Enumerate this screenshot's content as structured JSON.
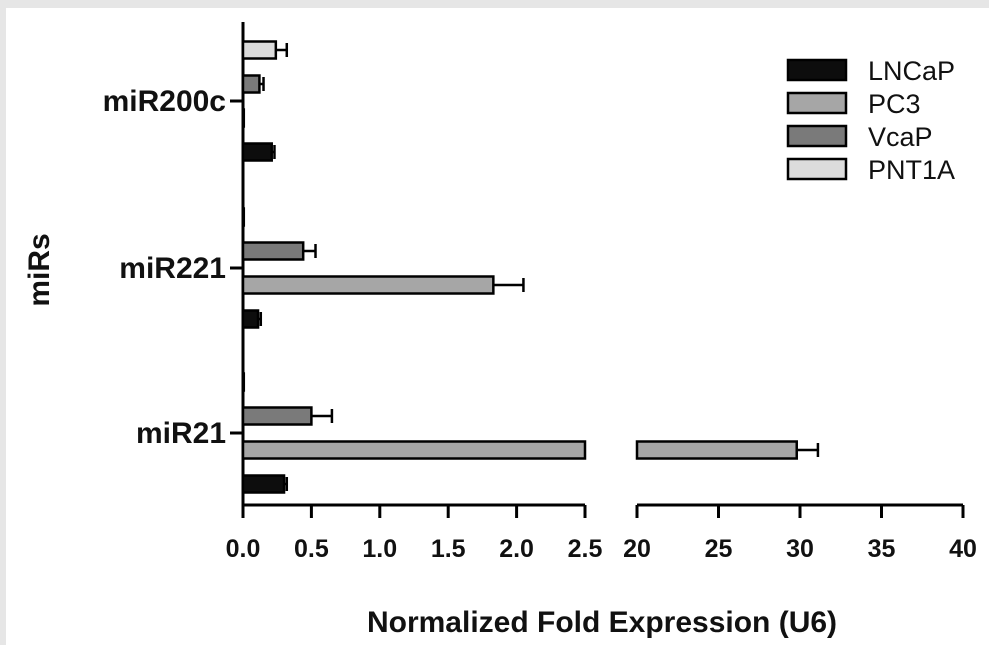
{
  "chart_data": {
    "type": "bar",
    "orientation": "horizontal",
    "xlabel": "Normalized Fold Expression (U6)",
    "ylabel": "miRs",
    "categories": [
      "miR200c",
      "miR221",
      "miR21"
    ],
    "series": [
      {
        "name": "LNCaP",
        "color": "#0d0d0d",
        "values": [
          0.21,
          0.11,
          0.3
        ],
        "errors": [
          0.02,
          0.02,
          0.02
        ]
      },
      {
        "name": "PC3",
        "color": "#a6a6a6",
        "values": [
          0.003,
          1.83,
          29.8
        ],
        "errors": [
          0.003,
          0.22,
          1.3
        ]
      },
      {
        "name": "VcaP",
        "color": "#7a7a7a",
        "values": [
          0.12,
          0.44,
          0.5
        ],
        "errors": [
          0.03,
          0.09,
          0.15
        ]
      },
      {
        "name": "PNT1A",
        "color": "#dcdcdc",
        "values": [
          0.24,
          0.005,
          0.003
        ],
        "errors": [
          0.08,
          0.005,
          0.003
        ]
      }
    ],
    "x_axis": {
      "broken": true,
      "segment1": {
        "range": [
          0,
          2.5
        ],
        "ticks": [
          "0.0",
          "0.5",
          "1.0",
          "1.5",
          "2.0",
          "2.5"
        ]
      },
      "segment2": {
        "range": [
          20,
          40
        ],
        "ticks": [
          "20",
          "25",
          "30",
          "35",
          "40"
        ]
      }
    },
    "legend": {
      "position": "top-right",
      "entries": [
        "LNCaP",
        "PC3",
        "VcaP",
        "PNT1A"
      ]
    },
    "grid": false
  }
}
